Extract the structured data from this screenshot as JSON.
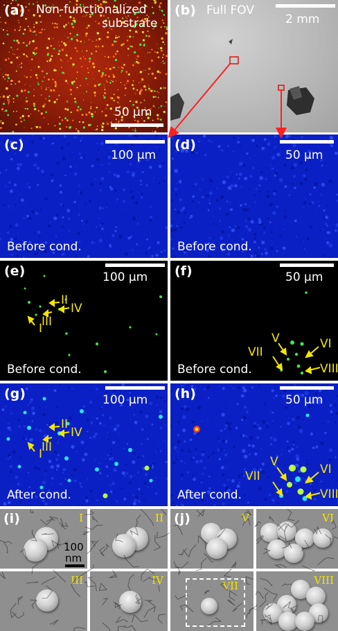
{
  "panels": {
    "a": {
      "label": "(a)",
      "title_line1": "Non-functionalized",
      "title_line2": "substrate",
      "scale": "50 μm"
    },
    "b": {
      "label": "(b)",
      "title": "Full FOV",
      "scale": "2 mm"
    },
    "c": {
      "label": "(c)",
      "scale": "100 μm",
      "caption": "Before cond."
    },
    "d": {
      "label": "(d)",
      "scale": "50 μm",
      "caption": "Before cond."
    },
    "e": {
      "label": "(e)",
      "scale": "100 μm",
      "caption": "Before cond.",
      "markers": [
        "II",
        "IV",
        "III",
        "I"
      ]
    },
    "f": {
      "label": "(f)",
      "scale": "50 μm",
      "caption": "Before cond.",
      "markers": [
        "V",
        "VI",
        "VII",
        "VIII"
      ]
    },
    "g": {
      "label": "(g)",
      "scale": "100 μm",
      "caption": "After cond.",
      "markers": [
        "II",
        "IV",
        "III",
        "I"
      ]
    },
    "h": {
      "label": "(h)",
      "scale": "50 μm",
      "caption": "After cond.",
      "markers": [
        "V",
        "VI",
        "VII",
        "VIII"
      ]
    },
    "i": {
      "label": "(i)",
      "scale_line1": "100",
      "scale_line2": "nm"
    },
    "j": {
      "label": "(j)"
    }
  },
  "sem_tiles": [
    "I",
    "II",
    "III",
    "IV",
    "V",
    "VI",
    "VII",
    "VIII"
  ],
  "colors": {
    "arrow": "#ff2020",
    "marker": "#f3e600",
    "blue_field": "#0a1fc8"
  }
}
